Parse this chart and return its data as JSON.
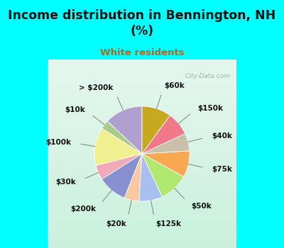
{
  "title": "Income distribution in Bennington, NH\n(%)",
  "subtitle": "White residents",
  "title_color": "#111111",
  "subtitle_color": "#b06820",
  "bg_color": "#00ffff",
  "chart_bg_color_outer": "#c8eed8",
  "chart_bg_color_inner": "#e8f8f0",
  "watermark": "City-Data.com",
  "labels": [
    "> $200k",
    "$10k",
    "$100k",
    "$30k",
    "$200k",
    "$20k",
    "$125k",
    "$50k",
    "$75k",
    "$40k",
    "$150k",
    "$60k"
  ],
  "values": [
    13,
    3,
    13,
    5,
    10,
    5,
    8,
    10,
    9,
    6,
    8,
    10
  ],
  "colors": [
    "#b0a0d0",
    "#a8cc88",
    "#f0f090",
    "#f0aab8",
    "#8890d0",
    "#f8c8a0",
    "#a8c0f0",
    "#b0e870",
    "#f8a850",
    "#c8c0a8",
    "#f07888",
    "#c8a820"
  ],
  "startangle": 90,
  "label_fontsize": 7.5,
  "title_fontsize": 12.5,
  "subtitle_fontsize": 9.5
}
